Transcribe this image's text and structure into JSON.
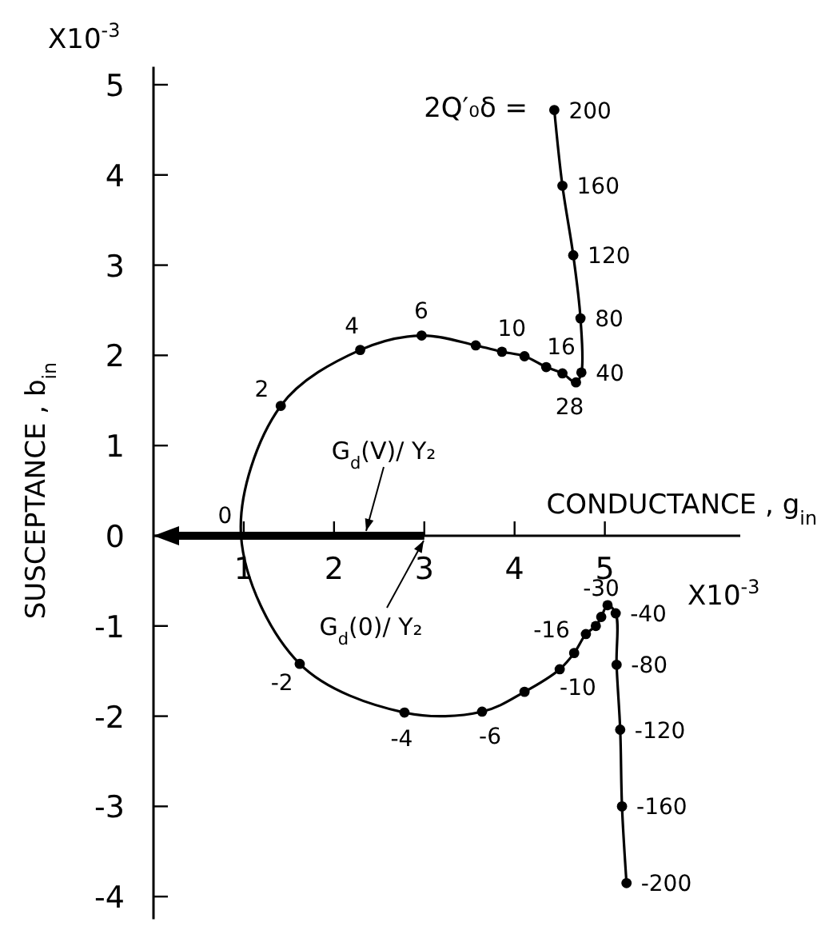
{
  "chart_data": {
    "type": "scatter",
    "xlabel": "CONDUCTANCE , g$_{in}$",
    "ylabel": "SUSCEPTANCE , b$_{in}$",
    "xlim": [
      0,
      6.5
    ],
    "ylim": [
      -4.25,
      5.2
    ],
    "xticks": [
      1,
      2,
      3,
      4,
      5
    ],
    "yticks": [
      -4,
      -3,
      -2,
      -1,
      0,
      1,
      2,
      3,
      4,
      5
    ],
    "grid": false,
    "series": [
      {
        "type": "line",
        "color": "#000000",
        "marker": "none",
        "line_style": "solid",
        "x": [
          5.24,
          5.19,
          5.17,
          5.13,
          5.12,
          5.03,
          4.96,
          4.9,
          4.79,
          4.66,
          4.5,
          4.11,
          3.64,
          2.78,
          1.62,
          0.97,
          1.41,
          2.29,
          2.97,
          3.57,
          3.86,
          4.11,
          4.35,
          4.53,
          4.68,
          4.74,
          4.73,
          4.65,
          4.53,
          4.44
        ],
        "values": [
          -3.85,
          -3.0,
          -2.15,
          -1.43,
          -0.86,
          -0.77,
          -0.9,
          -1.0,
          -1.09,
          -1.3,
          -1.48,
          -1.73,
          -1.95,
          -1.96,
          -1.42,
          0,
          1.44,
          2.06,
          2.22,
          2.11,
          2.04,
          1.99,
          1.87,
          1.8,
          1.7,
          1.81,
          2.41,
          3.11,
          3.88,
          4.72
        ]
      },
      {
        "color": "#000000",
        "marker": "circle",
        "x": [
          5.24,
          5.19,
          5.17,
          5.13,
          5.12,
          5.03,
          4.96,
          4.9,
          4.79,
          4.66,
          4.5,
          4.11,
          3.64,
          2.78,
          1.62,
          1.41,
          2.29,
          2.97,
          3.57,
          3.86,
          4.11,
          4.35,
          4.53,
          4.68,
          4.74,
          4.73,
          4.65,
          4.53,
          4.44
        ],
        "values": [
          -3.85,
          -3.0,
          -2.15,
          -1.43,
          -0.86,
          -0.77,
          -0.9,
          -1.0,
          -1.09,
          -1.3,
          -1.48,
          -1.73,
          -1.95,
          -1.96,
          -1.42,
          1.44,
          2.06,
          2.22,
          2.11,
          2.04,
          1.99,
          1.87,
          1.8,
          1.7,
          1.81,
          2.41,
          3.11,
          3.88,
          4.72
        ]
      }
    ],
    "annotations": [
      "X10$^{-3}$",
      "X10$^{-3}$",
      "2Q′₀δ =",
      "G$_{d}$(V)/ Y₂",
      "G$_{d}$(0)/ Y₂",
      {
        "text": "200",
        "x": 4.44,
        "y": 4.72
      },
      {
        "text": "160",
        "x": 4.53,
        "y": 3.88
      },
      {
        "text": "120",
        "x": 4.65,
        "y": 3.11
      },
      {
        "text": "80",
        "x": 4.73,
        "y": 2.41
      },
      {
        "text": "40",
        "x": 4.74,
        "y": 1.81
      },
      {
        "text": "28",
        "x": 4.68,
        "y": 1.7
      },
      {
        "text": "16",
        "x": 4.35,
        "y": 1.87
      },
      {
        "text": "10",
        "x": 3.86,
        "y": 2.04
      },
      {
        "text": "6",
        "x": 2.97,
        "y": 2.22
      },
      {
        "text": "4",
        "x": 2.29,
        "y": 2.06
      },
      {
        "text": "2",
        "x": 1.41,
        "y": 1.44
      },
      {
        "text": "0",
        "x": 0.97,
        "y": 0
      },
      {
        "text": "-2",
        "x": 1.62,
        "y": -1.42
      },
      {
        "text": "-4",
        "x": 2.78,
        "y": -1.96
      },
      {
        "text": "-6",
        "x": 3.64,
        "y": -1.95
      },
      {
        "text": "-10",
        "x": 4.5,
        "y": -1.48
      },
      {
        "text": "-16",
        "x": 4.79,
        "y": -1.09
      },
      {
        "text": "-30",
        "x": 5.03,
        "y": -0.77
      },
      {
        "text": "-40",
        "x": 5.12,
        "y": -0.86
      },
      {
        "text": "-80",
        "x": 5.13,
        "y": -1.43
      },
      {
        "text": "-120",
        "x": 5.17,
        "y": -2.15
      },
      {
        "text": "-160",
        "x": 5.19,
        "y": -3.0
      },
      {
        "text": "-200",
        "x": 5.24,
        "y": -3.85
      }
    ]
  }
}
